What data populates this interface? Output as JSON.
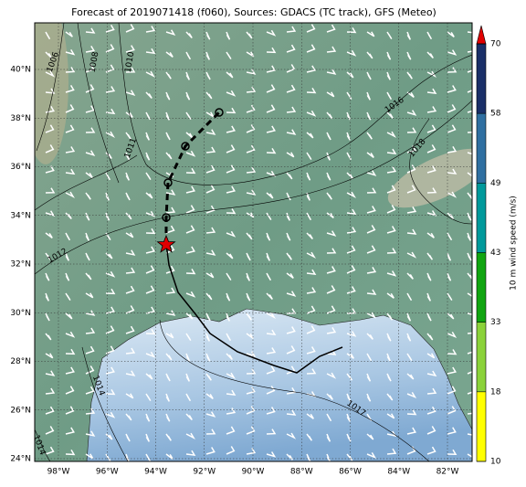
{
  "title": "Forecast of 2019071418 (f060), Sources: GDACS (TC track), GFS (Meteo)",
  "map": {
    "lon_labels": [
      "98°W",
      "96°W",
      "94°W",
      "92°W",
      "90°W",
      "88°W",
      "86°W",
      "84°W",
      "82°W"
    ],
    "lat_labels": [
      "40°N",
      "38°N",
      "36°N",
      "34°N",
      "32°N",
      "30°N",
      "28°N",
      "26°N",
      "24°N"
    ],
    "isobar_labels": [
      "1006",
      "1008",
      "1010",
      "1011",
      "1012",
      "1016",
      "1018",
      "1014",
      "1017",
      "1014"
    ]
  },
  "colorbar": {
    "label": "10 m wind speed (m/s)",
    "ticks": [
      10,
      18,
      33,
      43,
      49,
      58,
      70
    ]
  }
}
